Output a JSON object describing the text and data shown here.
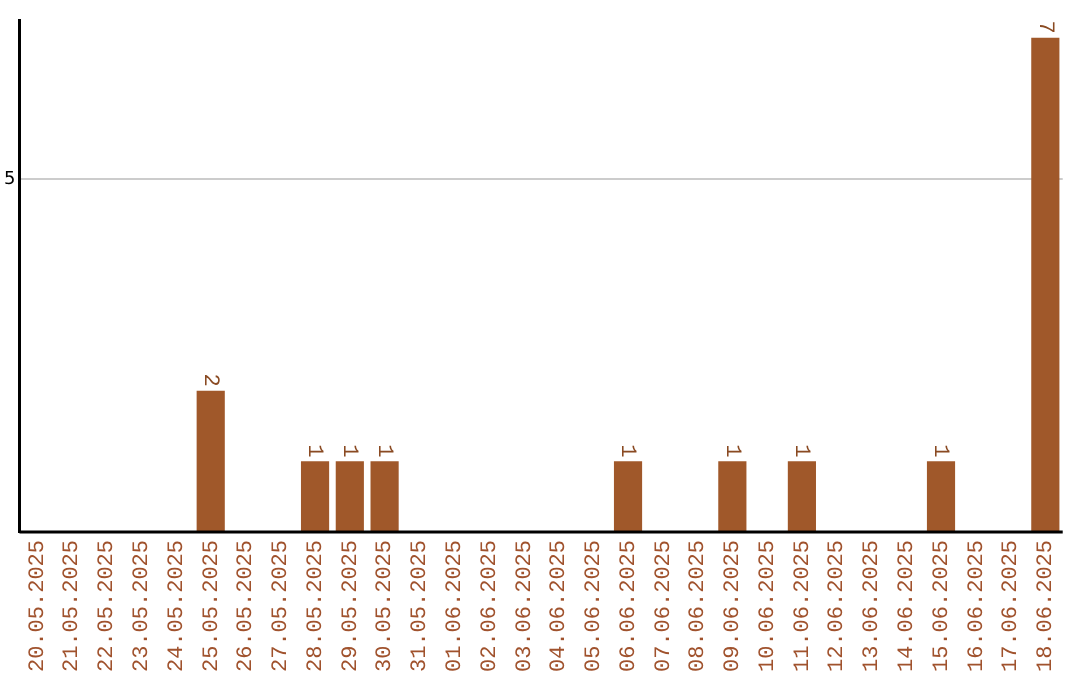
{
  "chart_data": {
    "type": "bar",
    "categories": [
      "20.05.2025",
      "21.05.2025",
      "22.05.2025",
      "23.05.2025",
      "24.05.2025",
      "25.05.2025",
      "26.05.2025",
      "27.05.2025",
      "28.05.2025",
      "29.05.2025",
      "30.05.2025",
      "31.05.2025",
      "01.06.2025",
      "02.06.2025",
      "03.06.2025",
      "04.06.2025",
      "05.06.2025",
      "06.06.2025",
      "07.06.2025",
      "08.06.2025",
      "09.06.2025",
      "10.06.2025",
      "11.06.2025",
      "12.06.2025",
      "13.06.2025",
      "14.06.2025",
      "15.06.2025",
      "16.06.2025",
      "17.06.2025",
      "18.06.2025"
    ],
    "values": [
      0,
      0,
      0,
      0,
      0,
      2,
      0,
      0,
      1,
      1,
      1,
      0,
      0,
      0,
      0,
      0,
      0,
      1,
      0,
      0,
      1,
      0,
      1,
      0,
      0,
      0,
      1,
      0,
      0,
      7
    ],
    "value_labels": [
      null,
      null,
      null,
      null,
      null,
      "2",
      null,
      null,
      "1",
      "1",
      "1",
      null,
      null,
      null,
      null,
      null,
      null,
      "1",
      null,
      null,
      "1",
      null,
      "1",
      null,
      null,
      null,
      "1",
      null,
      null,
      "7"
    ],
    "color": "#a0582a",
    "ylim": [
      0,
      7.25
    ],
    "yticks": [
      5
    ],
    "grid": "y",
    "legend": false
  }
}
